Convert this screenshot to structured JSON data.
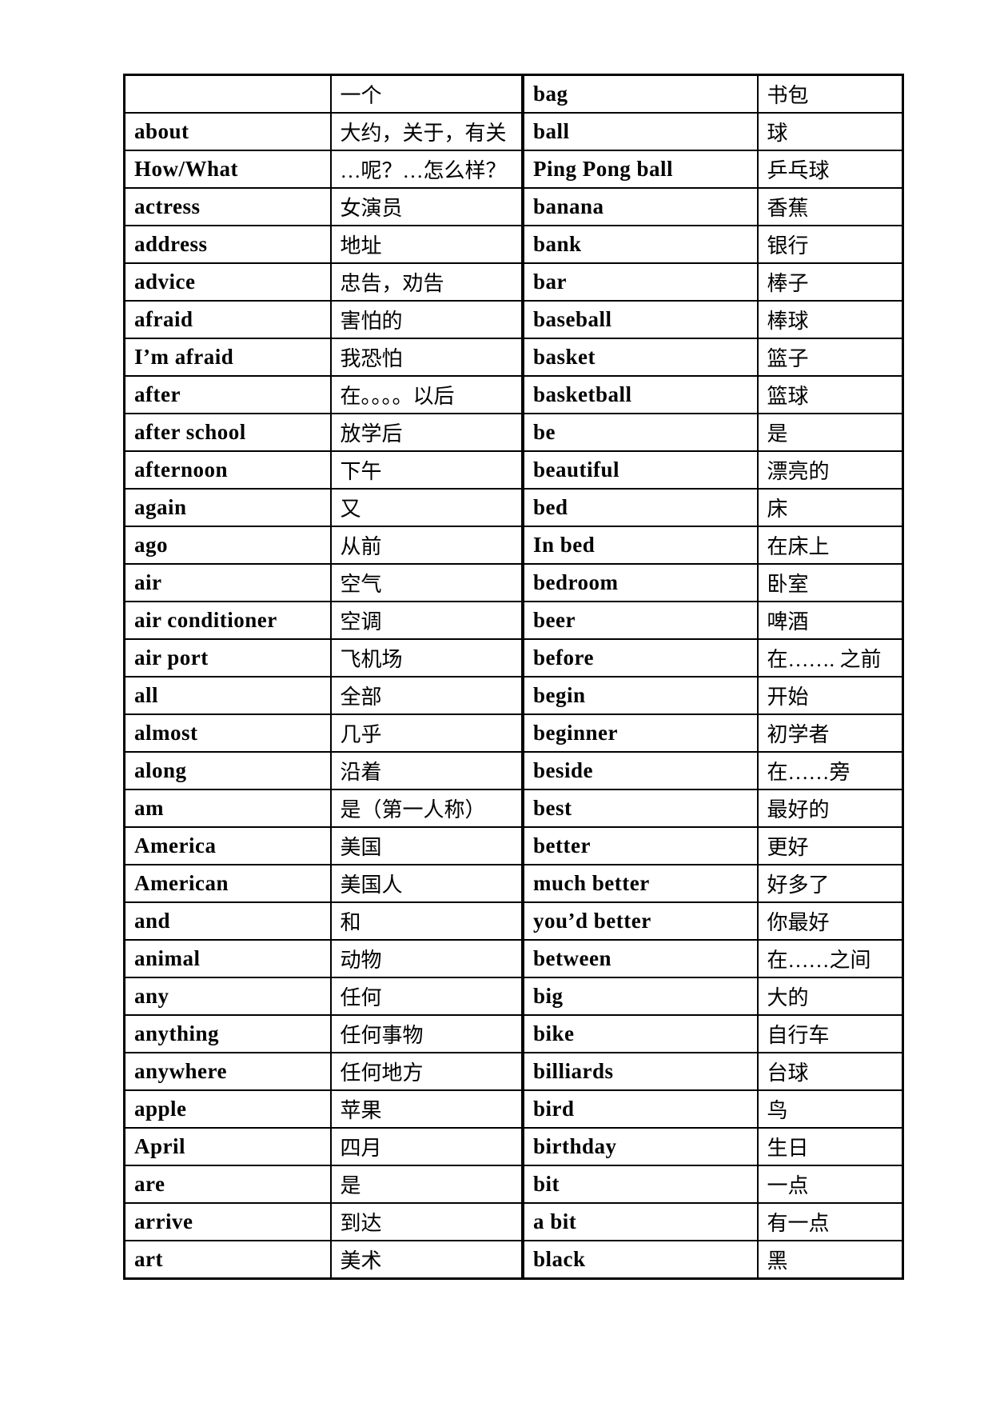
{
  "page": {
    "background_color": "#ffffff",
    "text_color": "#000000",
    "border_color": "#000000"
  },
  "table": {
    "rows": [
      {
        "en1": "",
        "zh1": "一个",
        "en2": "bag",
        "zh2": "书包"
      },
      {
        "en1": "about",
        "zh1": "大约，关于，有关",
        "en2": "ball",
        "zh2": "球"
      },
      {
        "en1": "How/What",
        "zh1": "…呢？…怎么样？",
        "en2": "Ping Pong ball",
        "zh2": "乒乓球"
      },
      {
        "en1": "actress",
        "zh1": "女演员",
        "en2": "banana",
        "zh2": "香蕉"
      },
      {
        "en1": "address",
        "zh1": "地址",
        "en2": "bank",
        "zh2": "银行"
      },
      {
        "en1": "advice",
        "zh1": "忠告，劝告",
        "en2": "bar",
        "zh2": "棒子"
      },
      {
        "en1": "afraid",
        "zh1": "害怕的",
        "en2": "baseball",
        "zh2": "棒球"
      },
      {
        "en1": "I’m afraid",
        "zh1": "我恐怕",
        "en2": "basket",
        "zh2": "篮子"
      },
      {
        "en1": "after",
        "zh1": "在。。。。以后",
        "en2": "basketball",
        "zh2": "篮球"
      },
      {
        "en1": "after school",
        "zh1": "放学后",
        "en2": "be",
        "zh2": "是"
      },
      {
        "en1": "afternoon",
        "zh1": "下午",
        "en2": "beautiful",
        "zh2": "漂亮的"
      },
      {
        "en1": "again",
        "zh1": "又",
        "en2": "bed",
        "zh2": "床"
      },
      {
        "en1": "ago",
        "zh1": "从前",
        "en2": "In bed",
        "zh2": "在床上"
      },
      {
        "en1": "air",
        "zh1": "空气",
        "en2": "bedroom",
        "zh2": "卧室"
      },
      {
        "en1": "air conditioner",
        "zh1": "空调",
        "en2": "beer",
        "zh2": "啤酒"
      },
      {
        "en1": "air port",
        "zh1": "飞机场",
        "en2": "before",
        "zh2": "在……. 之前"
      },
      {
        "en1": "all",
        "zh1": "全部",
        "en2": "begin",
        "zh2": "开始"
      },
      {
        "en1": "almost",
        "zh1": "几乎",
        "en2": "beginner",
        "zh2": "初学者"
      },
      {
        "en1": "along",
        "zh1": "沿着",
        "en2": "beside",
        "zh2": "在……旁"
      },
      {
        "en1": "am",
        "zh1": "是（第一人称）",
        "en2": "best",
        "zh2": "最好的"
      },
      {
        "en1": "America",
        "zh1": "美国",
        "en2": "better",
        "zh2": "更好"
      },
      {
        "en1": "American",
        "zh1": "美国人",
        "en2": "much better",
        "zh2": "好多了"
      },
      {
        "en1": "and",
        "zh1": "和",
        "en2": "you’d better",
        "zh2": "你最好"
      },
      {
        "en1": "animal",
        "zh1": "动物",
        "en2": "between",
        "zh2": "在……之间"
      },
      {
        "en1": "any",
        "zh1": "任何",
        "en2": "big",
        "zh2": "大的"
      },
      {
        "en1": "anything",
        "zh1": "任何事物",
        "en2": "bike",
        "zh2": "自行车"
      },
      {
        "en1": "anywhere",
        "zh1": "任何地方",
        "en2": "billiards",
        "zh2": "台球"
      },
      {
        "en1": "apple",
        "zh1": "苹果",
        "en2": "bird",
        "zh2": "鸟"
      },
      {
        "en1": "April",
        "zh1": "四月",
        "en2": "birthday",
        "zh2": "生日"
      },
      {
        "en1": "are",
        "zh1": "是",
        "en2": "bit",
        "zh2": "一点"
      },
      {
        "en1": "arrive",
        "zh1": "到达",
        "en2": "a bit",
        "zh2": "有一点"
      },
      {
        "en1": "art",
        "zh1": "美术",
        "en2": "black",
        "zh2": "黑"
      }
    ]
  }
}
